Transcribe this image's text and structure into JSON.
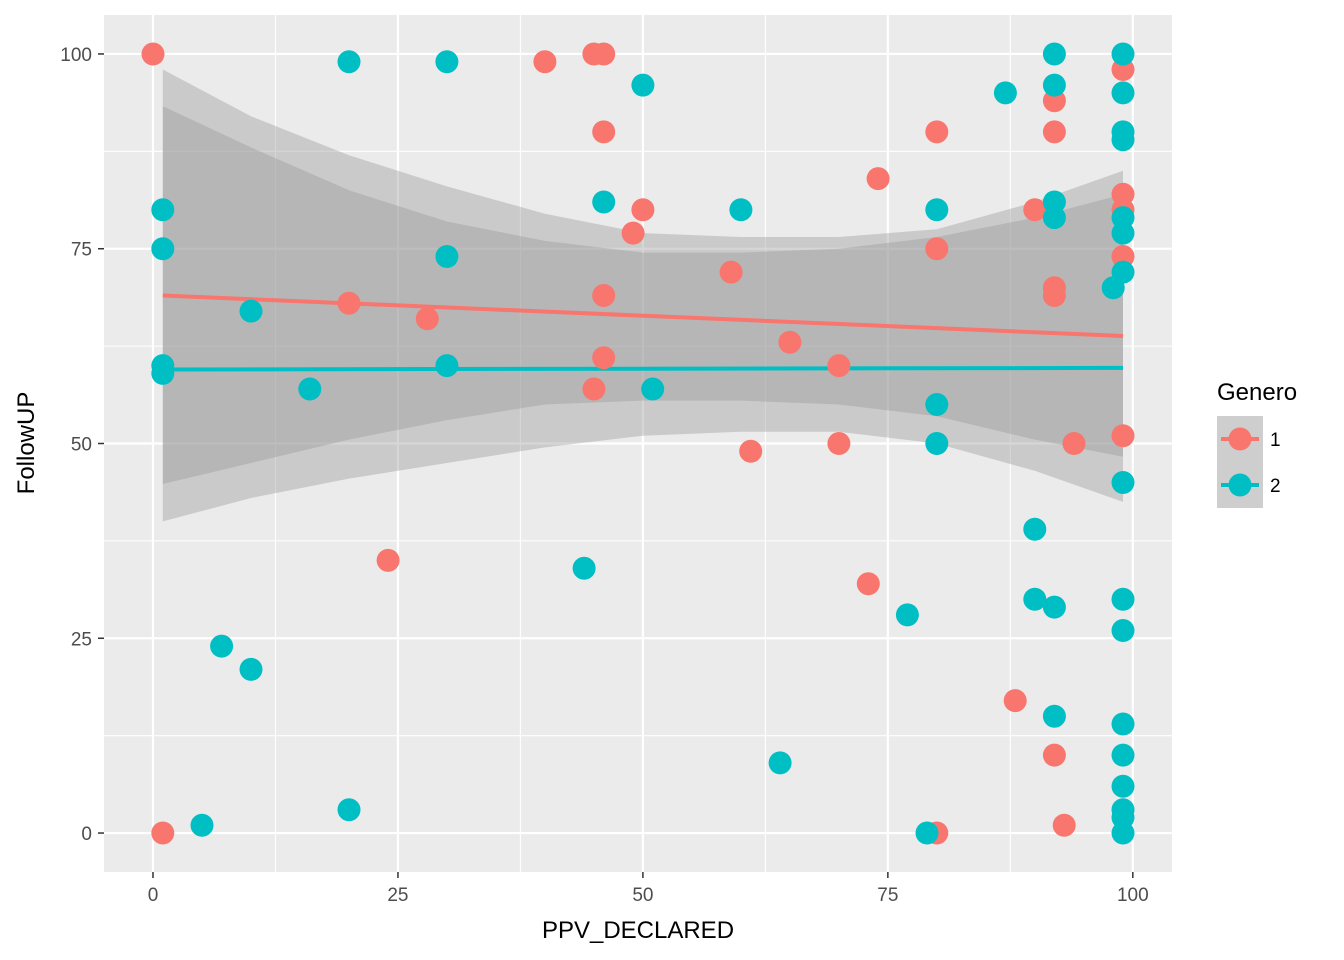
{
  "chart_data": {
    "type": "scatter",
    "title": "",
    "xlabel": "PPV_DECLARED",
    "ylabel": "FollowUP",
    "xlim": [
      -5,
      104
    ],
    "ylim": [
      -5,
      105
    ],
    "x_ticks": [
      0,
      25,
      50,
      75,
      100
    ],
    "y_ticks": [
      0,
      25,
      50,
      75,
      100
    ],
    "x_tick_labels": [
      "0",
      "25",
      "50",
      "75",
      "100"
    ],
    "y_tick_labels": [
      "0",
      "25",
      "50",
      "75",
      "100"
    ],
    "grid": true,
    "background": "#ebebeb",
    "legend": {
      "title": "Genero",
      "placement": "right",
      "entries": [
        "1",
        "2"
      ]
    },
    "series": [
      {
        "name": "1",
        "color": "#f8766d",
        "points": [
          [
            0,
            100
          ],
          [
            1,
            0
          ],
          [
            20,
            68
          ],
          [
            24,
            35
          ],
          [
            28,
            66
          ],
          [
            40,
            99
          ],
          [
            45,
            100
          ],
          [
            46,
            100
          ],
          [
            46,
            90
          ],
          [
            46,
            69
          ],
          [
            46,
            61
          ],
          [
            45,
            57
          ],
          [
            49,
            77
          ],
          [
            50,
            80
          ],
          [
            59,
            72
          ],
          [
            61,
            49
          ],
          [
            65,
            63
          ],
          [
            70,
            60
          ],
          [
            70,
            50
          ],
          [
            73,
            32
          ],
          [
            74,
            84
          ],
          [
            80,
            90
          ],
          [
            80,
            75
          ],
          [
            80,
            0
          ],
          [
            88,
            17
          ],
          [
            90,
            80
          ],
          [
            92,
            94
          ],
          [
            92,
            90
          ],
          [
            92,
            70
          ],
          [
            92,
            69
          ],
          [
            92,
            10
          ],
          [
            93,
            1
          ],
          [
            94,
            50
          ],
          [
            99,
            98
          ],
          [
            99,
            82
          ],
          [
            99,
            80
          ],
          [
            99,
            74
          ],
          [
            99,
            51
          ]
        ],
        "fit": {
          "x": [
            1,
            99
          ],
          "y": [
            69.0,
            63.8
          ]
        },
        "band": {
          "x": [
            1,
            10,
            20,
            30,
            40,
            50,
            60,
            70,
            80,
            90,
            99
          ],
          "lower": [
            40,
            43,
            45.5,
            47.5,
            49.5,
            51,
            51.5,
            51.5,
            50,
            46.5,
            42.5
          ],
          "upper": [
            98,
            92,
            87,
            83,
            79.5,
            77,
            76.5,
            76.5,
            77.5,
            81,
            85
          ]
        }
      },
      {
        "name": "2",
        "color": "#00bfc4",
        "points": [
          [
            1,
            80
          ],
          [
            1,
            75
          ],
          [
            1,
            60
          ],
          [
            1,
            59
          ],
          [
            5,
            1
          ],
          [
            7,
            24
          ],
          [
            10,
            67
          ],
          [
            10,
            21
          ],
          [
            16,
            57
          ],
          [
            20,
            99
          ],
          [
            20,
            3
          ],
          [
            30,
            99
          ],
          [
            30,
            74
          ],
          [
            30,
            60
          ],
          [
            44,
            34
          ],
          [
            46,
            81
          ],
          [
            50,
            96
          ],
          [
            51,
            57
          ],
          [
            60,
            80
          ],
          [
            64,
            9
          ],
          [
            77,
            28
          ],
          [
            79,
            0
          ],
          [
            80,
            80
          ],
          [
            80,
            55
          ],
          [
            80,
            50
          ],
          [
            87,
            95
          ],
          [
            90,
            39
          ],
          [
            90,
            30
          ],
          [
            92,
            100
          ],
          [
            92,
            96
          ],
          [
            92,
            81
          ],
          [
            92,
            79
          ],
          [
            92,
            29
          ],
          [
            92,
            15
          ],
          [
            98,
            70
          ],
          [
            99,
            100
          ],
          [
            99,
            95
          ],
          [
            99,
            90
          ],
          [
            99,
            89
          ],
          [
            99,
            79
          ],
          [
            99,
            77
          ],
          [
            99,
            72
          ],
          [
            99,
            45
          ],
          [
            99,
            30
          ],
          [
            99,
            26
          ],
          [
            99,
            14
          ],
          [
            99,
            10
          ],
          [
            99,
            6
          ],
          [
            99,
            3
          ],
          [
            99,
            2
          ],
          [
            99,
            0
          ]
        ],
        "fit": {
          "x": [
            1,
            99
          ],
          "y": [
            59.5,
            59.7
          ]
        },
        "band": {
          "x": [
            1,
            10,
            20,
            30,
            40,
            50,
            60,
            70,
            80,
            90,
            99
          ],
          "lower": [
            44.8,
            47.5,
            50.5,
            53,
            55,
            55.5,
            55.5,
            55,
            53.5,
            50.5,
            48.3
          ],
          "upper": [
            93.3,
            88,
            82.5,
            78.5,
            76,
            74.5,
            74.5,
            75,
            76.5,
            79,
            82
          ]
        }
      }
    ]
  }
}
